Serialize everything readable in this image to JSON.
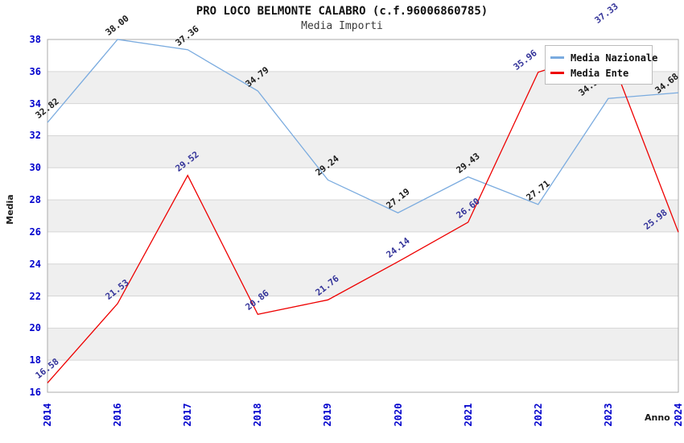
{
  "title": "PRO LOCO BELMONTE CALABRO (c.f.96006860785)",
  "subtitle": "Media Importi",
  "chart_data": {
    "type": "line",
    "categories": [
      "2014",
      "2016",
      "2017",
      "2018",
      "2019",
      "2020",
      "2021",
      "2022",
      "2023",
      "2024"
    ],
    "xlabel": "Anno",
    "ylabel": "Media",
    "ylim": [
      16,
      38
    ],
    "ytick_step": 2,
    "grid": "horizontal gridlines every 2 units with alternating gray bands (18-20, 22-24, 26-28, 30-32, 34-36)",
    "legend_position": "top-right",
    "series": [
      {
        "name": "Media Nazionale",
        "color": "#7aabdf",
        "label_color": "#1a1a1a",
        "values": [
          32.82,
          38.0,
          37.36,
          34.79,
          29.24,
          27.19,
          29.43,
          27.71,
          34.32,
          34.68
        ],
        "labels": [
          "32.82",
          "38.00",
          "37.36",
          "34.79",
          "29.24",
          "27.19",
          "29.43",
          "27.71",
          "34.32",
          "34.68"
        ],
        "label_offsets": {
          "8": [
            -22,
            2
          ],
          "9": [
            -14,
            6
          ]
        }
      },
      {
        "name": "Media Ente",
        "color": "#ee0000",
        "label_color": "#333399",
        "values": [
          16.58,
          21.53,
          29.52,
          20.86,
          21.76,
          24.14,
          26.6,
          35.96,
          37.33,
          25.98
        ],
        "labels": [
          "16.58",
          "21.53",
          "29.52",
          "20.86",
          "21.76",
          "24.14",
          "26.60",
          "35.96",
          "37.33",
          "25.98"
        ],
        "label_offsets": {
          "7": [
            -16,
            2
          ],
          "8": [
            -2,
            -28
          ],
          "9": [
            -28,
            2
          ]
        }
      }
    ],
    "colors": {
      "tick_labels": "#0000cc",
      "band": "#efefef",
      "grid": "#d6d6d6",
      "border": "#ababab",
      "background": "#ffffff"
    }
  }
}
